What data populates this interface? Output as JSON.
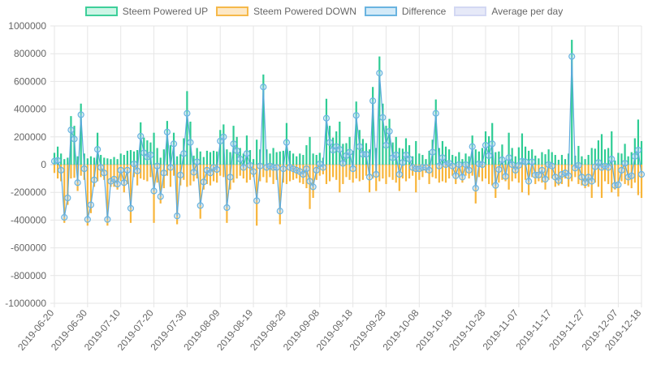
{
  "chart_data": {
    "type": "bar",
    "title": "",
    "xlabel": "",
    "ylabel": "",
    "ylim": [
      -1000000,
      1000000
    ],
    "y_ticks": [
      1000000,
      800000,
      600000,
      400000,
      200000,
      0,
      -200000,
      -400000,
      -600000,
      -800000,
      -1000000
    ],
    "y_tick_labels": [
      "1000000",
      "800000",
      "600000",
      "400000",
      "200000",
      "0",
      "-200000",
      "-400000",
      "-600000",
      "-800000",
      "-1000000"
    ],
    "x_start": "2019-06-20",
    "x_end": "2019-12-18",
    "x_tick_labels": [
      "2019-06-20",
      "2019-06-30",
      "2019-07-10",
      "2019-07-20",
      "2019-07-30",
      "2019-08-09",
      "2019-08-19",
      "2019-08-29",
      "2019-09-08",
      "2019-09-18",
      "2019-09-28",
      "2019-10-08",
      "2019-10-18",
      "2019-10-28",
      "2019-11-07",
      "2019-11-17",
      "2019-11-27",
      "2019-12-07",
      "2019-12-18"
    ],
    "grid": true,
    "legend_position": "top",
    "legend": [
      {
        "name": "Steem Powered UP",
        "fill": "#cdf5e6",
        "stroke": "#3ecf9a"
      },
      {
        "name": "Steem Powered DOWN",
        "fill": "#fde8c6",
        "stroke": "#f6b94a"
      },
      {
        "name": "Difference",
        "fill": "#d3eaf8",
        "stroke": "#6ab4e0"
      },
      {
        "name": "Average per day",
        "fill": "#e6e9f8",
        "stroke": "#d3d8f3"
      }
    ],
    "series": [
      {
        "name": "Steem Powered UP",
        "kind": "bar",
        "color": "#2ecc94",
        "values": [
          85000,
          130000,
          80000,
          40000,
          50000,
          350000,
          280000,
          60000,
          440000,
          80000,
          45000,
          60000,
          50000,
          230000,
          70000,
          50000,
          45000,
          40000,
          55000,
          40000,
          80000,
          70000,
          100000,
          105000,
          95000,
          105000,
          305000,
          195000,
          175000,
          160000,
          230000,
          120000,
          50000,
          110000,
          315000,
          140000,
          230000,
          60000,
          75000,
          190000,
          530000,
          310000,
          65000,
          120000,
          95000,
          55000,
          100000,
          90000,
          100000,
          95000,
          250000,
          290000,
          110000,
          90000,
          280000,
          200000,
          120000,
          80000,
          210000,
          105000,
          40000,
          180000,
          110000,
          650000,
          110000,
          80000,
          120000,
          90000,
          95000,
          100000,
          300000,
          100000,
          80000,
          60000,
          80000,
          70000,
          140000,
          200000,
          80000,
          70000,
          85000,
          50000,
          475000,
          280000,
          195000,
          240000,
          310000,
          150000,
          155000,
          200000,
          100000,
          455000,
          250000,
          185000,
          155000,
          110000,
          560000,
          120000,
          780000,
          440000,
          280000,
          330000,
          160000,
          200000,
          120000,
          115000,
          190000,
          140000,
          60000,
          170000,
          80000,
          70000,
          40000,
          100000,
          180000,
          470000,
          120000,
          170000,
          130000,
          110000,
          70000,
          60000,
          90000,
          40000,
          80000,
          60000,
          210000,
          110000,
          95000,
          120000,
          240000,
          205000,
          300000,
          90000,
          95000,
          145000,
          35000,
          230000,
          120000,
          60000,
          125000,
          225000,
          130000,
          100000,
          110000,
          65000,
          45000,
          90000,
          75000,
          110000,
          90000,
          70000,
          35000,
          70000,
          40000,
          80000,
          900000,
          65000,
          135000,
          60000,
          40000,
          70000,
          120000,
          115000,
          175000,
          220000,
          110000,
          120000,
          240000,
          30000,
          85000,
          80000,
          150000,
          60000,
          90000,
          190000,
          325000,
          170000
        ]
      },
      {
        "name": "Steem Powered DOWN",
        "kind": "bar",
        "color": "#f8b53a",
        "values": [
          -60000,
          -100000,
          -120000,
          -420000,
          -290000,
          -100000,
          -95000,
          -190000,
          -80000,
          -110000,
          -440000,
          -350000,
          -160000,
          -120000,
          -90000,
          -110000,
          -440000,
          -160000,
          -160000,
          -180000,
          -120000,
          -200000,
          -140000,
          -420000,
          -90000,
          -150000,
          -100000,
          -110000,
          -120000,
          -90000,
          -420000,
          -130000,
          -280000,
          -170000,
          -80000,
          -160000,
          -80000,
          -430000,
          -150000,
          -110000,
          -160000,
          -150000,
          -120000,
          -100000,
          -390000,
          -180000,
          -140000,
          -150000,
          -120000,
          -130000,
          -80000,
          -90000,
          -420000,
          -180000,
          -130000,
          -100000,
          -80000,
          -100000,
          -130000,
          -110000,
          -90000,
          -440000,
          -120000,
          -90000,
          -130000,
          -90000,
          -140000,
          -110000,
          -430000,
          -130000,
          -140000,
          -120000,
          -110000,
          -100000,
          -130000,
          -140000,
          -170000,
          -320000,
          -240000,
          -110000,
          -80000,
          -70000,
          -140000,
          -120000,
          -90000,
          -110000,
          -200000,
          -140000,
          -90000,
          -110000,
          -130000,
          -100000,
          -120000,
          -110000,
          -80000,
          -200000,
          -100000,
          -190000,
          -120000,
          -100000,
          -140000,
          -90000,
          -110000,
          -130000,
          -190000,
          -100000,
          -120000,
          -100000,
          -80000,
          -200000,
          -110000,
          -90000,
          -60000,
          -140000,
          -90000,
          -100000,
          -130000,
          -120000,
          -130000,
          -100000,
          -80000,
          -140000,
          -90000,
          -130000,
          -80000,
          -100000,
          -80000,
          -280000,
          -90000,
          -120000,
          -100000,
          -140000,
          -150000,
          -240000,
          -130000,
          -110000,
          -120000,
          -180000,
          -120000,
          -100000,
          -130000,
          -200000,
          -110000,
          -220000,
          -90000,
          -140000,
          -120000,
          -130000,
          -180000,
          -110000,
          -100000,
          -160000,
          -150000,
          -140000,
          -100000,
          -160000,
          -120000,
          -90000,
          -140000,
          -150000,
          -170000,
          -160000,
          -240000,
          -130000,
          -160000,
          -240000,
          -120000,
          -140000,
          -200000,
          -180000,
          -230000,
          -120000,
          -140000,
          -150000,
          -170000,
          -130000,
          -220000,
          -240000,
          -170000,
          -130000,
          -200000,
          -160000,
          -210000,
          -170000
        ]
      }
    ]
  }
}
